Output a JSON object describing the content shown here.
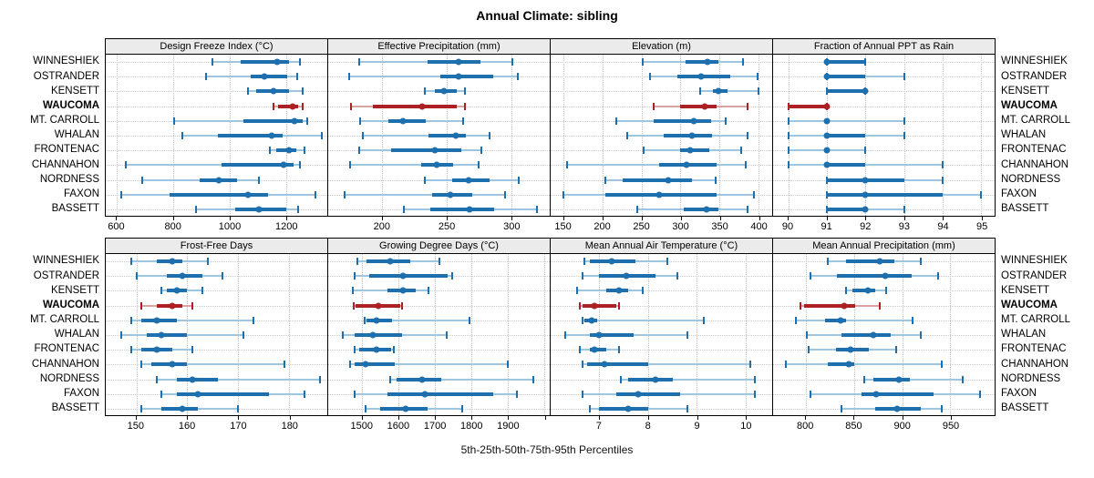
{
  "title": "Annual Climate: sibling",
  "footer": "5th-25th-50th-75th-95th Percentiles",
  "percentile_scheme": [
    5,
    25,
    50,
    75,
    95
  ],
  "locations": [
    "WINNESHIEK",
    "OSTRANDER",
    "KENSETT",
    "WAUCOMA",
    "MT. CARROLL",
    "WHALAN",
    "FRONTENAC",
    "CHANNAHON",
    "NORDNESS",
    "FAXON",
    "BASSETT"
  ],
  "highlight_location": "WAUCOMA",
  "colors": {
    "series": "#1d6fae",
    "series_light": "#9ec6e0",
    "highlight": "#ad2024",
    "highlight_light": "#dca3a3",
    "strip_bg": "#ebebeb",
    "grid": "#c4c4c4"
  },
  "chart_data": [
    {
      "type": "dotplot-percentiles",
      "title": "Design Freeze Index (°C)",
      "xlim": [
        560,
        1347
      ],
      "ticks": [
        600,
        800,
        1000,
        1200
      ],
      "tick_labels": [
        "600",
        "800",
        "1000",
        "1200"
      ],
      "rows": [
        [
          940,
          1040,
          1170,
          1210,
          1250
        ],
        [
          917,
          1075,
          1122,
          1205,
          1240
        ],
        [
          1065,
          1095,
          1155,
          1210,
          1258
        ],
        [
          1157,
          1172,
          1223,
          1243,
          1258
        ],
        [
          803,
          1048,
          1232,
          1258,
          1277
        ],
        [
          831,
          959,
          1148,
          1188,
          1327
        ],
        [
          1143,
          1165,
          1210,
          1238,
          1266
        ],
        [
          632,
          970,
          1191,
          1227,
          1251
        ],
        [
          691,
          892,
          963,
          1026,
          1104
        ],
        [
          616,
          786,
          1065,
          1137,
          1305
        ],
        [
          881,
          1020,
          1104,
          1200,
          1243
        ]
      ]
    },
    {
      "type": "dotplot-percentiles",
      "title": "Effective Precipitation (mm)",
      "xlim": [
        158,
        330
      ],
      "ticks": [
        200,
        250,
        300
      ],
      "tick_labels": [
        "200",
        "250",
        "300"
      ],
      "rows": [
        [
          182,
          235,
          259,
          276,
          301
        ],
        [
          174,
          245,
          259,
          286,
          305
        ],
        [
          233,
          241,
          248,
          258,
          264
        ],
        [
          176,
          193,
          231,
          258,
          264
        ],
        [
          183,
          205,
          216,
          234,
          263
        ],
        [
          185,
          236,
          257,
          265,
          283
        ],
        [
          182,
          207,
          241,
          261,
          277
        ],
        [
          175,
          230,
          242,
          255,
          275
        ],
        [
          233,
          254,
          267,
          283,
          306
        ],
        [
          171,
          239,
          253,
          270,
          295
        ],
        [
          217,
          237,
          268,
          287,
          320
        ]
      ]
    },
    {
      "type": "dotplot-percentiles",
      "title": "Elevation (m)",
      "xlim": [
        133,
        418
      ],
      "ticks": [
        150,
        200,
        250,
        300,
        350,
        400
      ],
      "tick_labels": [
        "150",
        "200",
        "250",
        "300",
        "350",
        "400"
      ],
      "rows": [
        [
          252,
          306,
          335,
          349,
          380
        ],
        [
          261,
          296,
          327,
          364,
          399
        ],
        [
          325,
          342,
          349,
          360,
          400
        ],
        [
          265,
          300,
          331,
          347,
          386
        ],
        [
          218,
          265,
          317,
          339,
          358
        ],
        [
          232,
          278,
          315,
          341,
          386
        ],
        [
          253,
          300,
          312,
          337,
          378
        ],
        [
          154,
          273,
          308,
          347,
          384
        ],
        [
          203,
          226,
          284,
          315,
          345
        ],
        [
          150,
          203,
          273,
          347,
          395
        ],
        [
          245,
          304,
          333,
          349,
          386
        ]
      ]
    },
    {
      "type": "dotplot-percentiles",
      "title": "Fraction of Annual PPT as Rain",
      "xlim": [
        89.6,
        95.35
      ],
      "ticks": [
        90,
        91,
        92,
        93,
        94,
        95
      ],
      "tick_labels": [
        "90",
        "91",
        "92",
        "93",
        "94",
        "95"
      ],
      "rows": [
        [
          91,
          91,
          91,
          92,
          92
        ],
        [
          91,
          91,
          91,
          92,
          93
        ],
        [
          91,
          91,
          92,
          92,
          92
        ],
        [
          90,
          90,
          91,
          91,
          91
        ],
        [
          90,
          91,
          91,
          91,
          93
        ],
        [
          90,
          91,
          91,
          92,
          93
        ],
        [
          90,
          91,
          91,
          91,
          92
        ],
        [
          90,
          91,
          91,
          92,
          94
        ],
        [
          91,
          91,
          92,
          93,
          94
        ],
        [
          91,
          91,
          92,
          94,
          95
        ],
        [
          91,
          91,
          92,
          92,
          93
        ]
      ]
    },
    {
      "type": "dotplot-percentiles",
      "title": "Frost-Free Days",
      "xlim": [
        144,
        187.5
      ],
      "ticks": [
        150,
        160,
        170,
        180
      ],
      "tick_labels": [
        "150",
        "160",
        "170",
        "180"
      ],
      "rows": [
        [
          149,
          154,
          157,
          159,
          164
        ],
        [
          150,
          156,
          159,
          163,
          167
        ],
        [
          155,
          156,
          158,
          160,
          163
        ],
        [
          151,
          154,
          157,
          159,
          161
        ],
        [
          149,
          151,
          154,
          158,
          173
        ],
        [
          147,
          152,
          155,
          160,
          171
        ],
        [
          149,
          151,
          154,
          157,
          161
        ],
        [
          151,
          153,
          157,
          160,
          179
        ],
        [
          154,
          158,
          161,
          166,
          186
        ],
        [
          155,
          158,
          162,
          176,
          183
        ],
        [
          151,
          155,
          159,
          162,
          170
        ]
      ]
    },
    {
      "type": "dotplot-percentiles",
      "title": "Growing Degree Days (°C)",
      "xlim": [
        1406,
        2016
      ],
      "ticks": [
        1500,
        1600,
        1700,
        1800,
        1900,
        2000
      ],
      "tick_labels": [
        "1500",
        "1600",
        "1700",
        "1800",
        "1900",
        ""
      ],
      "rows": [
        [
          1486,
          1512,
          1576,
          1633,
          1713
        ],
        [
          1478,
          1520,
          1613,
          1735,
          1748
        ],
        [
          1475,
          1570,
          1612,
          1648,
          1683
        ],
        [
          1477,
          1482,
          1543,
          1605,
          1610
        ],
        [
          1507,
          1512,
          1539,
          1582,
          1795
        ],
        [
          1445,
          1478,
          1528,
          1610,
          1733
        ],
        [
          1478,
          1492,
          1539,
          1580,
          1586
        ],
        [
          1467,
          1480,
          1510,
          1590,
          1900
        ],
        [
          1576,
          1594,
          1664,
          1717,
          1971
        ],
        [
          1478,
          1570,
          1672,
          1860,
          1926
        ],
        [
          1508,
          1549,
          1619,
          1680,
          1774
        ]
      ]
    },
    {
      "type": "dotplot-percentiles",
      "title": "Mean Annual Air Temperature (°C)",
      "xlim": [
        6.0,
        10.55
      ],
      "ticks": [
        7,
        8,
        9,
        10
      ],
      "tick_labels": [
        "7",
        "8",
        "9",
        "10"
      ],
      "rows": [
        [
          6.7,
          6.8,
          7.25,
          7.75,
          8.4
        ],
        [
          6.65,
          7.0,
          7.55,
          8.15,
          8.6
        ],
        [
          6.55,
          7.15,
          7.4,
          7.6,
          7.9
        ],
        [
          6.6,
          6.65,
          6.9,
          7.35,
          7.4
        ],
        [
          6.65,
          6.7,
          6.85,
          6.95,
          9.15
        ],
        [
          6.3,
          6.8,
          7.0,
          7.7,
          8.8
        ],
        [
          6.6,
          6.8,
          6.9,
          7.15,
          7.4
        ],
        [
          6.65,
          6.75,
          7.1,
          8.0,
          10.1
        ],
        [
          7.45,
          7.6,
          8.15,
          8.5,
          10.2
        ],
        [
          6.65,
          7.35,
          7.8,
          8.65,
          10.2
        ],
        [
          6.8,
          7.0,
          7.6,
          8.0,
          8.8
        ]
      ]
    },
    {
      "type": "dotplot-percentiles",
      "title": "Mean Annual Precipitation (mm)",
      "xlim": [
        766,
        996
      ],
      "ticks": [
        800,
        850,
        900,
        950
      ],
      "tick_labels": [
        "800",
        "850",
        "900",
        "950"
      ],
      "rows": [
        [
          823,
          842,
          877,
          892,
          919
        ],
        [
          805,
          832,
          882,
          910,
          937
        ],
        [
          842,
          848,
          864,
          872,
          883
        ],
        [
          794,
          798,
          840,
          851,
          877
        ],
        [
          790,
          820,
          836,
          842,
          911
        ],
        [
          801,
          837,
          870,
          888,
          919
        ],
        [
          803,
          831,
          846,
          865,
          894
        ],
        [
          779,
          823,
          845,
          850,
          941
        ],
        [
          861,
          870,
          897,
          908,
          963
        ],
        [
          805,
          858,
          873,
          933,
          981
        ],
        [
          837,
          872,
          895,
          919,
          941
        ]
      ]
    }
  ]
}
